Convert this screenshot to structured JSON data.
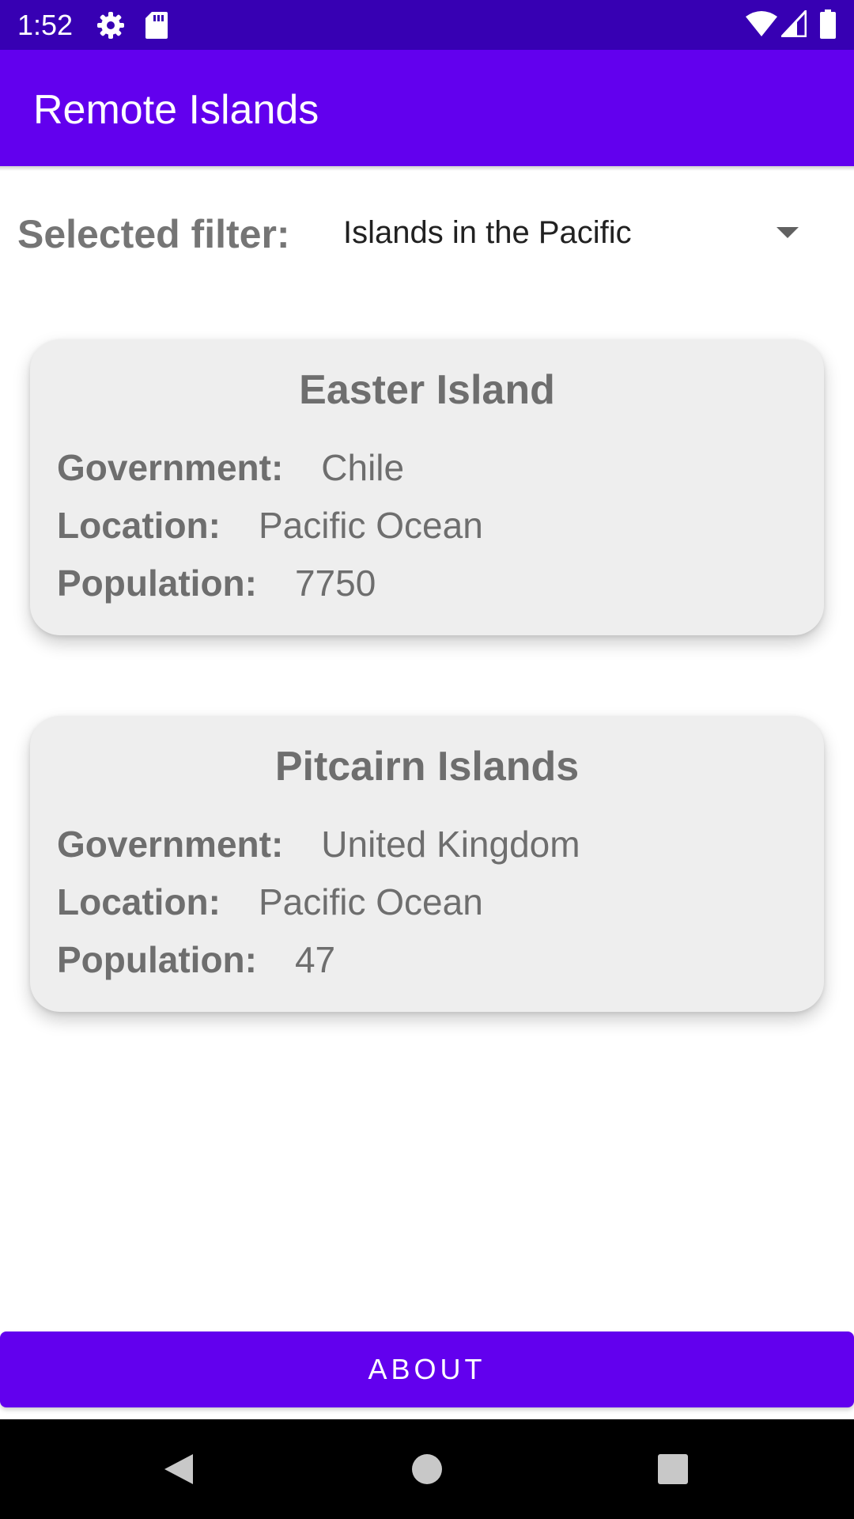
{
  "status_bar": {
    "time": "1:52",
    "icons": [
      "gear-icon",
      "sd-card-icon",
      "wifi-icon",
      "cell-signal-icon",
      "battery-icon"
    ]
  },
  "app_bar": {
    "title": "Remote Islands"
  },
  "filter": {
    "label": "Selected filter:",
    "selected": "Islands in the Pacific"
  },
  "islands": [
    {
      "name": "Easter Island",
      "government_label": "Government:",
      "government": "Chile",
      "location_label": "Location:",
      "location": "Pacific Ocean",
      "population_label": "Population:",
      "population": "7750"
    },
    {
      "name": "Pitcairn Islands",
      "government_label": "Government:",
      "government": "United Kingdom",
      "location_label": "Location:",
      "location": "Pacific Ocean",
      "population_label": "Population:",
      "population": "47"
    }
  ],
  "about_button": {
    "label": "ABOUT"
  },
  "colors": {
    "status_bar": "#3700B3",
    "primary": "#6200EE",
    "card_background": "#EEEEEE",
    "card_text": "#6E6E6E"
  }
}
